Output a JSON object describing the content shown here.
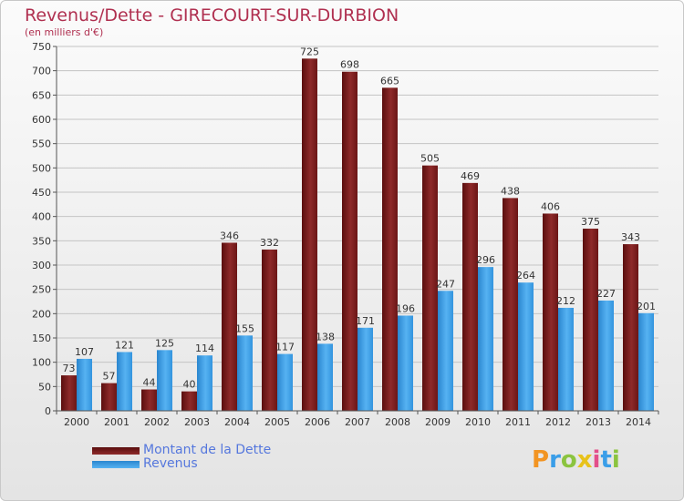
{
  "chart_data": {
    "type": "bar",
    "title": "Revenus/Dette - GIRECOURT-SUR-DURBION",
    "subtitle": "(en milliers d'€)",
    "categories": [
      "2000",
      "2001",
      "2002",
      "2003",
      "2004",
      "2005",
      "2006",
      "2007",
      "2008",
      "2009",
      "2010",
      "2011",
      "2012",
      "2013",
      "2014"
    ],
    "series": [
      {
        "name": "Montant de la Dette",
        "color": "#7a1a1a",
        "values": [
          73,
          57,
          44,
          40,
          346,
          332,
          725,
          698,
          665,
          505,
          469,
          438,
          406,
          375,
          343
        ]
      },
      {
        "name": "Revenus",
        "color": "#3a9ee8",
        "values": [
          107,
          121,
          125,
          114,
          155,
          117,
          138,
          171,
          196,
          247,
          296,
          264,
          212,
          227,
          201
        ]
      }
    ],
    "ylim": [
      0,
      750
    ],
    "ytick_step": 50,
    "grid": true,
    "legend": "bottom-left"
  },
  "legend": {
    "debt_label": "Montant de la Dette",
    "revenue_label": "Revenus"
  },
  "brand": {
    "letters": [
      "P",
      "r",
      "o",
      "x",
      "i",
      "t",
      "i"
    ],
    "colors": [
      "#f29422",
      "#3a9ee8",
      "#8bc43f",
      "#e8c21a",
      "#e34f8a",
      "#3a9ee8",
      "#8bc43f"
    ]
  }
}
